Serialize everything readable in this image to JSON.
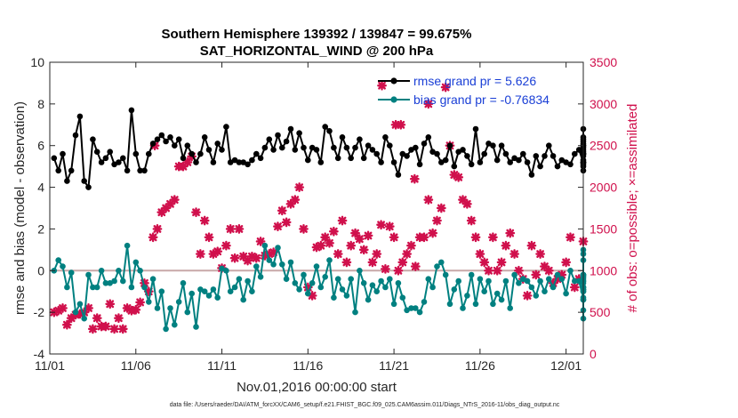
{
  "chart_data": {
    "type": "line",
    "title": "Southern Hemisphere 139392 / 139847 = 99.675%",
    "subtitle": "SAT_HORIZONTAL_WIND @ 200 hPa",
    "xlabel": "Nov.01,2016 00:00:00 start",
    "ylabel": "rmse and bias (model - observation)",
    "y2label": "# of obs: o=possible; ×=assimilated",
    "footnote": "data file: /Users/raeder/DAI/ATM_forcXX/CAM6_setup/f.e21.FHIST_BGC.f09_025.CAM6assim.011/Diags_NTrS_2016-11/obs_diag_output.nc",
    "xlim": [
      0,
      31
    ],
    "ylim": [
      -4,
      10
    ],
    "y2lim": [
      0,
      3500
    ],
    "xticks": [
      0,
      5,
      10,
      15,
      20,
      25,
      30
    ],
    "xtick_labels": [
      "11/01",
      "11/06",
      "11/11",
      "11/16",
      "11/21",
      "11/26",
      "12/01"
    ],
    "yticks": [
      -4,
      -2,
      0,
      2,
      4,
      6,
      8,
      10
    ],
    "ytick_labels": [
      "-4",
      "-2",
      "0",
      "2",
      "4",
      "6",
      "8",
      "10"
    ],
    "y2ticks": [
      0,
      500,
      1000,
      1500,
      2000,
      2500,
      3000,
      3500
    ],
    "y2tick_labels": [
      "0",
      "500",
      "1000",
      "1500",
      "2000",
      "2500",
      "3000",
      "3500"
    ],
    "x_start": 0.25,
    "x_step": 0.25,
    "series": [
      {
        "name": "rmse grand pr = 5.626",
        "color": "#000000",
        "marker": "circle",
        "values": [
          5.4,
          4.8,
          5.6,
          4.3,
          4.8,
          6.5,
          7.4,
          4.3,
          4.0,
          6.3,
          5.7,
          5.2,
          5.4,
          5.7,
          5.1,
          5.2,
          5.4,
          4.8,
          7.7,
          5.6,
          4.8,
          4.8,
          5.6,
          6.1,
          6.3,
          6.5,
          6.2,
          6.4,
          6.0,
          6.3,
          5.4,
          6.0,
          5.6,
          5.2,
          5.6,
          6.4,
          5.8,
          5.2,
          6.1,
          5.8,
          6.9,
          5.2,
          5.3,
          5.2,
          5.2,
          5.1,
          5.3,
          5.6,
          5.4,
          5.9,
          6.3,
          5.8,
          6.5,
          5.9,
          6.2,
          6.8,
          5.8,
          6.6,
          5.9,
          5.3,
          5.9,
          5.8,
          5.2,
          6.9,
          6.7,
          5.9,
          5.4,
          6.4,
          5.9,
          5.4,
          5.9,
          6.3,
          5.4,
          6.0,
          5.8,
          5.6,
          5.2,
          6.4,
          6.0,
          5.2,
          4.6,
          5.6,
          5.5,
          5.8,
          5.9,
          5.1,
          6.1,
          6.4,
          5.7,
          5.6,
          5.2,
          5.3,
          6.0,
          5.0,
          5.7,
          5.8,
          5.5,
          5.1,
          6.8,
          5.2,
          5.6,
          6.1,
          6.0,
          5.3,
          6.0,
          5.6,
          5.2,
          5.4,
          5.3,
          5.6,
          5.2,
          4.6,
          5.5,
          5.0,
          5.5,
          6.0,
          5.5,
          5.0,
          5.3,
          5.2,
          5.1,
          5.6,
          5.8,
          5.2,
          6.0,
          5.8,
          5.6,
          5.7,
          6.4,
          5.2,
          6.1,
          4.8,
          5.9,
          5.3,
          5.6,
          5.5,
          6.2,
          5.6,
          5.2,
          6.0,
          6.3,
          6.8,
          5.0,
          5.2,
          5.1
        ]
      },
      {
        "name": "bias grand pr = -0.76834",
        "color": "#008080",
        "marker": "circle",
        "values": [
          0.0,
          0.5,
          0.2,
          -0.8,
          -0.1,
          -2.0,
          -1.6,
          -2.3,
          -0.2,
          -0.8,
          -0.8,
          0.0,
          -0.6,
          -0.6,
          -0.5,
          0.0,
          -0.5,
          1.2,
          -0.8,
          0.4,
          0.0,
          -0.8,
          -1.5,
          -0.4,
          -1.8,
          -1.0,
          -2.8,
          -1.8,
          -2.6,
          -1.5,
          -0.6,
          -2.0,
          -1.1,
          -2.7,
          -0.9,
          -1.0,
          -1.2,
          -0.9,
          -1.3,
          0.1,
          0.0,
          -1.0,
          -0.8,
          -0.4,
          -1.4,
          -0.5,
          -1.0,
          0.2,
          -0.3,
          1.2,
          0.5,
          0.3,
          1.1,
          0.3,
          -0.4,
          0.4,
          -0.6,
          -0.9,
          -0.2,
          -1.1,
          -0.6,
          0.2,
          -0.8,
          -0.3,
          0.5,
          -1.3,
          -0.4,
          -0.9,
          -1.2,
          -0.4,
          -2.0,
          0.0,
          -0.6,
          -1.4,
          -0.7,
          -1.0,
          -0.5,
          -0.8,
          -0.4,
          -1.6,
          -0.6,
          -1.3,
          -1.9,
          -1.8,
          -1.8,
          -2.0,
          -1.5,
          -0.4,
          -0.8,
          0.2,
          0.4,
          -0.2,
          -1.6,
          -0.9,
          -0.5,
          -1.8,
          -1.2,
          -0.2,
          -1.6,
          -0.4,
          -1.0,
          -0.5,
          -1.6,
          -1.1,
          -1.4,
          -0.5,
          -1.8,
          -0.2,
          -0.6,
          -0.4,
          -0.5,
          -0.8,
          -1.2,
          -0.5,
          -1.0,
          -0.4,
          -0.8,
          -0.2,
          -0.4,
          -1.1,
          0.0,
          -0.5,
          -0.5,
          -1.3,
          -0.6,
          -0.2,
          0.5,
          -0.3,
          -1.0,
          -0.9,
          -0.8,
          -0.2,
          1.0,
          -0.5,
          -0.2,
          0.8,
          -0.8,
          -1.4,
          -0.9,
          -0.4,
          -0.2,
          -0.8,
          -0.5,
          -0.3,
          -1.4,
          -1.9,
          -2.3,
          -1.0,
          -0.9
        ]
      }
    ],
    "obs_series": {
      "name": "assimilated",
      "color": "#d0104c",
      "marker": "x",
      "values": [
        500,
        520,
        550,
        350,
        430,
        470,
        480,
        500,
        550,
        300,
        430,
        330,
        330,
        600,
        300,
        430,
        300,
        550,
        520,
        530,
        620,
        850,
        750,
        1400,
        1500,
        1700,
        1750,
        1800,
        1850,
        2250,
        2250,
        2300,
        2370,
        1700,
        1200,
        1600,
        1400,
        1200,
        1230,
        1030,
        1300,
        1500,
        1150,
        1500,
        1170,
        1120,
        1170,
        1150,
        1350,
        1180,
        1200,
        1220,
        1530,
        1720,
        1580,
        1800,
        1850,
        2000,
        1500,
        800,
        700,
        1280,
        1300,
        1400,
        1330,
        1470,
        1200,
        1600,
        1100,
        1300,
        1450,
        1380,
        1250,
        1420,
        1100,
        1200,
        1550,
        1020,
        1530,
        1400,
        1000,
        1100,
        1200,
        1300,
        1050,
        1400,
        1400,
        1850,
        1450,
        1600,
        1750,
        3200,
        2500,
        2150,
        2120,
        1850,
        1800,
        1600,
        1400,
        1200,
        1100,
        1000,
        1400,
        1000,
        1100,
        1300,
        1450,
        1200,
        1000,
        900,
        700,
        1300,
        950,
        1200,
        1050,
        1000,
        850,
        900,
        950,
        1100,
        1400,
        800,
        900,
        1350,
        1200,
        1100,
        600,
        1500,
        1000,
        1650,
        1000,
        1150,
        1000,
        800,
        1100,
        1050,
        900,
        1000,
        1000,
        1000,
        1100,
        1000,
        1300,
        1350,
        1400,
        1550,
        1600,
        1650,
        1700,
        900,
        900,
        1000,
        800,
        600,
        0
      ]
    },
    "obs_extra_points": [
      {
        "x": 19.3,
        "v": 3220
      },
      {
        "x": 20.1,
        "v": 2750
      },
      {
        "x": 20.4,
        "v": 2750
      },
      {
        "x": 21.2,
        "v": 2100
      },
      {
        "x": 6.1,
        "v": 2500
      },
      {
        "x": 22.0,
        "v": 3000
      }
    ],
    "legend": {
      "position": "top-right",
      "entries": [
        "rmse grand pr = 5.626",
        "bias grand pr = -0.76834"
      ],
      "text_color": "#1a3fd6"
    },
    "zero_line": true,
    "grid": false
  },
  "colors": {
    "rmse": "#000000",
    "bias": "#008080",
    "obs": "#d0104c",
    "zero_line": "#c8a8a8",
    "legend_text": "#1a3fd6"
  }
}
